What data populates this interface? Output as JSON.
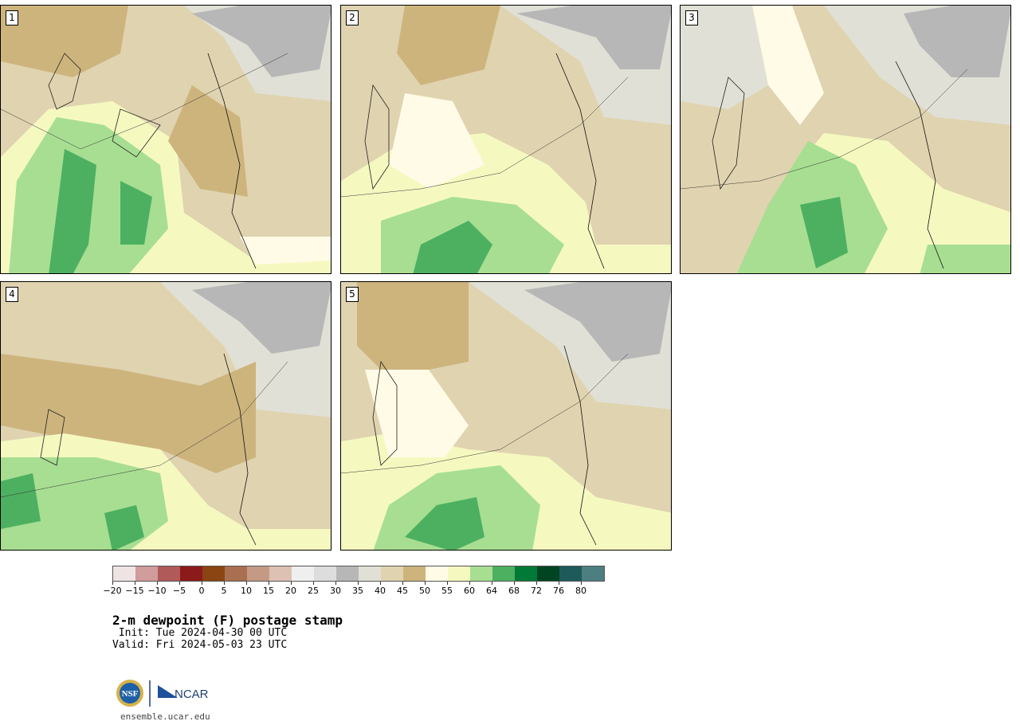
{
  "panels": [
    {
      "number": "1"
    },
    {
      "number": "2"
    },
    {
      "number": "3"
    },
    {
      "number": "4"
    },
    {
      "number": "5"
    }
  ],
  "colorbar": {
    "colors": [
      "#efe4e4",
      "#d09c9c",
      "#b05a5a",
      "#8b1a1a",
      "#8b4513",
      "#a87050",
      "#c49a84",
      "#ddc1b2",
      "#efefef",
      "#dddddd",
      "#b7b7b8",
      "#e0e0d6",
      "#e0d3b0",
      "#cdb47d",
      "#fffbe6",
      "#f5f9c0",
      "#a8de92",
      "#4db061",
      "#007a36",
      "#004422",
      "#1e5a5a",
      "#4d7f80"
    ],
    "labels": [
      "−20",
      "−15",
      "−10",
      "−5",
      "0",
      "5",
      "10",
      "15",
      "20",
      "25",
      "30",
      "35",
      "40",
      "45",
      "50",
      "55",
      "60",
      "64",
      "68",
      "72",
      "76",
      "80"
    ]
  },
  "title": "2-m dewpoint (F) postage stamp",
  "init": " Init: Tue 2024-04-30 00 UTC",
  "valid": "Valid: Fri 2024-05-03 23 UTC",
  "logos": {
    "nsf": "NSF",
    "ncar": "NCAR"
  },
  "website": "ensemble.ucar.edu"
}
